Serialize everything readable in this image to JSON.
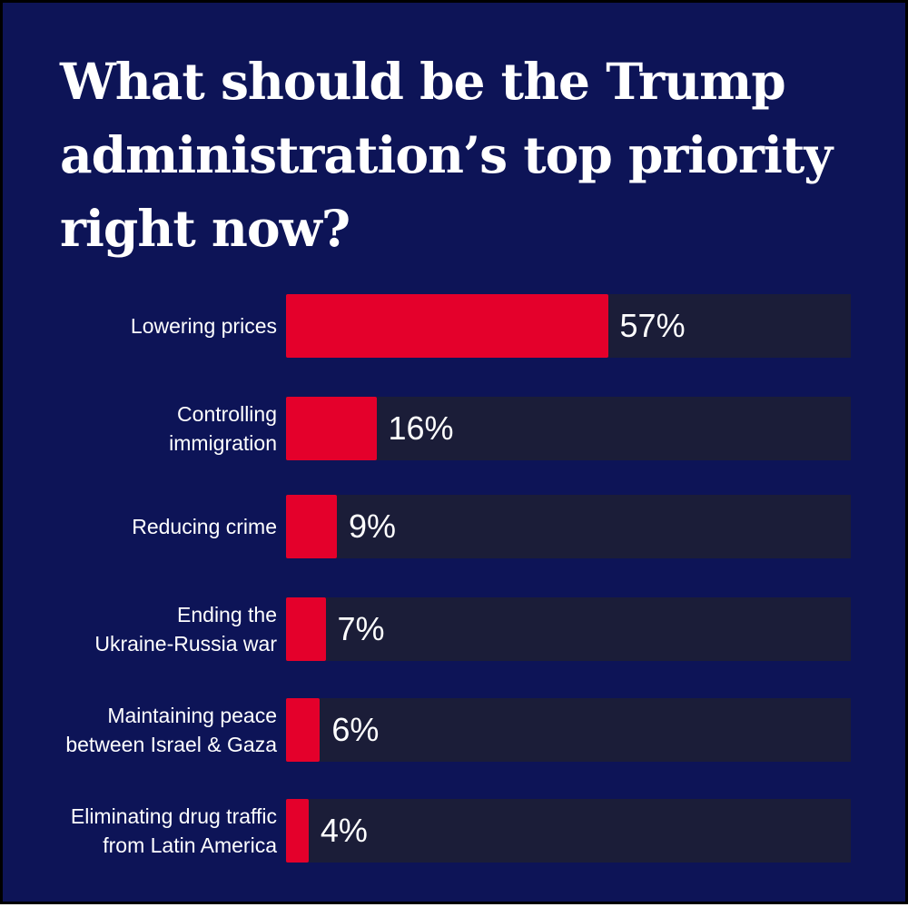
{
  "colors": {
    "background": "#0d1457",
    "bar_fill": "#e4002b",
    "bar_track": "#1b1d38",
    "text": "#ffffff"
  },
  "chart_data": {
    "type": "bar",
    "orientation": "horizontal",
    "title": "What should be the Trump administration’s top priority right now?",
    "categories": [
      "Lowering prices",
      "Controlling immigration",
      "Reducing crime",
      "Ending the Ukraine-Russia war",
      "Maintaining peace between Israel & Gaza",
      "Eliminating drug traffic from Latin America"
    ],
    "category_labels_display": [
      "Lowering prices",
      "Controlling\nimmigration",
      "Reducing crime",
      "Ending the\nUkraine-Russia war",
      "Maintaining peace\nbetween Israel & Gaza",
      "Eliminating drug traffic\nfrom Latin America"
    ],
    "values": [
      57,
      16,
      9,
      7,
      6,
      4
    ],
    "value_labels": [
      "57%",
      "16%",
      "9%",
      "7%",
      "6%",
      "4%"
    ],
    "unit": "%",
    "xlim": [
      0,
      100
    ],
    "grid": false,
    "legend": "none"
  }
}
